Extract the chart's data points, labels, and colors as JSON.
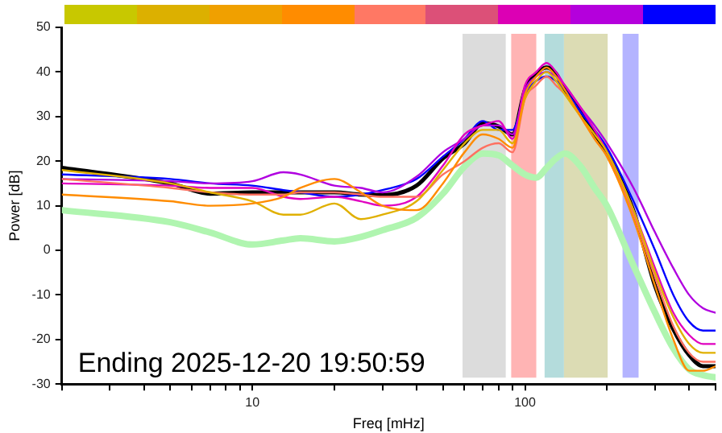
{
  "chart_data": {
    "type": "line",
    "xlabel": "Freq [mHz]",
    "ylabel": "Power [dB]",
    "log": "x",
    "grid": false,
    "legend": false,
    "marker": "none",
    "line_style": "solid",
    "xlim": [
      2,
      500
    ],
    "ylim": [
      -30,
      50
    ],
    "xticks": [
      {
        "value": 2,
        "label": null
      },
      {
        "value": 3,
        "label": null
      },
      {
        "value": 4,
        "label": null
      },
      {
        "value": 5,
        "label": null
      },
      {
        "value": 6,
        "label": null
      },
      {
        "value": 7,
        "label": null
      },
      {
        "value": 8,
        "label": null
      },
      {
        "value": 9,
        "label": null
      },
      10,
      {
        "value": 20,
        "label": null
      },
      {
        "value": 30,
        "label": null
      },
      {
        "value": 40,
        "label": null
      },
      {
        "value": 50,
        "label": null
      },
      {
        "value": 60,
        "label": null
      },
      {
        "value": 70,
        "label": null
      },
      {
        "value": 80,
        "label": null
      },
      {
        "value": 90,
        "label": null
      },
      100,
      {
        "value": 200,
        "label": null
      },
      {
        "value": 300,
        "label": null
      },
      {
        "value": 400,
        "label": null
      },
      {
        "value": 500,
        "label": null
      }
    ],
    "yticks": [
      -30,
      -20,
      -10,
      0,
      10,
      20,
      30,
      40,
      50
    ],
    "x": [
      2,
      5,
      7,
      10,
      13,
      15,
      20,
      25,
      30,
      40,
      50,
      60,
      70,
      80,
      90,
      100,
      110,
      120,
      130,
      140,
      160,
      180,
      200,
      250,
      300,
      350,
      400,
      450,
      500
    ],
    "series": [
      {
        "color": "#ff8c00",
        "values": [
          12.5,
          11,
          10,
          10.5,
          12,
          14,
          16,
          13,
          10,
          9,
          15,
          22,
          26,
          25,
          23,
          35,
          39,
          41,
          39,
          36,
          30,
          25,
          21,
          7,
          -8,
          -20,
          -27,
          -27,
          -26
        ]
      },
      {
        "color": "#e0b000",
        "values": [
          18,
          15,
          13,
          11,
          8,
          8,
          10.5,
          7,
          8,
          11,
          18,
          24,
          27,
          27,
          24,
          34,
          38,
          40,
          38,
          35,
          30,
          26,
          22,
          9,
          -5,
          -15,
          -21,
          -23,
          -23
        ]
      },
      {
        "color": "#ff7060",
        "values": [
          16,
          14,
          13,
          12.5,
          12.5,
          13,
          13,
          12.5,
          12,
          12,
          17,
          20,
          23,
          24,
          22,
          34,
          37,
          39,
          37,
          35,
          30,
          25,
          21,
          8,
          -6,
          -17,
          -23,
          -25,
          -25
        ]
      },
      {
        "color": "#e000c0",
        "values": [
          15,
          14.5,
          14,
          14,
          12,
          11.5,
          12,
          11,
          10,
          12,
          19,
          26,
          28,
          29,
          25,
          37,
          40,
          42,
          40,
          37,
          32,
          27,
          22,
          9,
          -4,
          -14,
          -19,
          -21,
          -21
        ]
      },
      {
        "color": "#b000e0",
        "values": [
          16,
          15.5,
          15,
          15.5,
          17.5,
          17,
          14.5,
          14,
          13,
          16.5,
          22,
          25,
          28,
          28,
          26,
          36,
          39,
          40,
          39,
          37,
          32,
          28,
          24,
          14,
          4,
          -4,
          -10,
          -13,
          -14
        ]
      },
      {
        "color": "#0000ff",
        "values": [
          17,
          16,
          15,
          14.5,
          13.5,
          13,
          12,
          12.5,
          13.5,
          16,
          21,
          25,
          29,
          27,
          27,
          35,
          38,
          39,
          38,
          36,
          31,
          27,
          23,
          11,
          0,
          -10,
          -16,
          -18,
          -18
        ]
      },
      {
        "color": "#000000",
        "values": [
          18.5,
          15,
          12.7,
          13,
          13,
          13,
          13,
          12.5,
          12.4,
          14.5,
          20.6,
          24,
          28.5,
          27.8,
          26,
          36,
          39.6,
          41,
          39.6,
          36,
          31.4,
          26,
          21.7,
          8.8,
          -8,
          -17.7,
          -23.5,
          -26,
          -26
        ]
      },
      {
        "color": "#b0f5b0",
        "values": [
          9,
          6.3,
          4,
          1.3,
          2.2,
          2.7,
          2,
          3,
          4.5,
          7.3,
          12.7,
          18.8,
          21.7,
          21.3,
          19,
          17,
          16.3,
          18.5,
          20.6,
          21.7,
          18.8,
          14,
          9.9,
          -3.4,
          -14,
          -22,
          -26.7,
          -28,
          -28.5
        ]
      }
    ],
    "bands": [
      {
        "axis": "x",
        "from": 59,
        "to": 85,
        "color": "#dcdcdc"
      },
      {
        "axis": "x",
        "from": 89,
        "to": 110,
        "color": "#ffb4b4"
      },
      {
        "axis": "x",
        "from": 118,
        "to": 139,
        "color": "#b4dcdc"
      },
      {
        "axis": "x",
        "from": 139,
        "to": 201,
        "color": "#dcdcb4"
      },
      {
        "axis": "x",
        "from": 228,
        "to": 261,
        "color": "#b4b4ff"
      }
    ],
    "annotations": [
      "Ending 2025-12-20 19:50:59"
    ]
  }
}
